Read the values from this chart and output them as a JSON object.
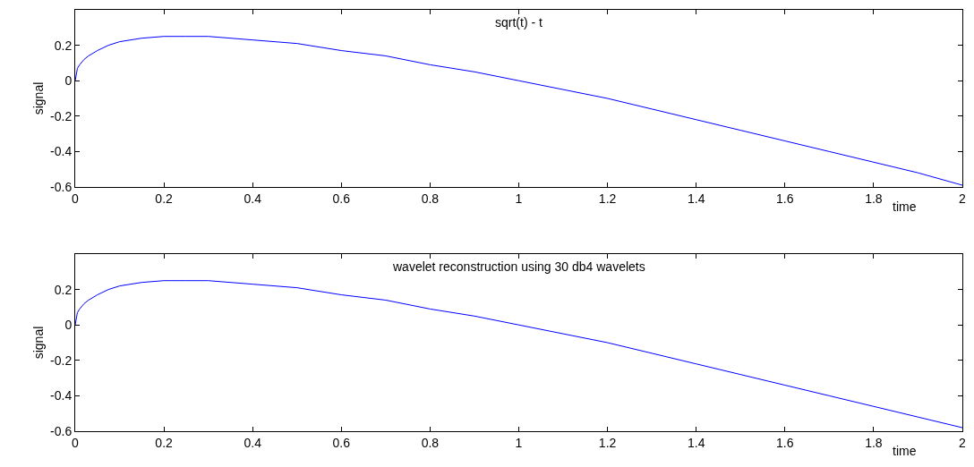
{
  "chart_data": [
    {
      "type": "line",
      "title": "sqrt(t) - t",
      "xlabel": "time",
      "ylabel": "signal",
      "xlim": [
        0,
        2
      ],
      "ylim": [
        -0.6,
        0.4
      ],
      "xticks": [
        0,
        0.2,
        0.4,
        0.6,
        0.8,
        1,
        1.2,
        1.4,
        1.6,
        1.8,
        2
      ],
      "yticks": [
        -0.6,
        -0.4,
        -0.2,
        0,
        0.2
      ],
      "x": [
        0,
        0.005,
        0.01,
        0.02,
        0.03,
        0.05,
        0.075,
        0.1,
        0.15,
        0.2,
        0.25,
        0.3,
        0.4,
        0.5,
        0.6,
        0.7,
        0.8,
        0.9,
        1.0,
        1.1,
        1.2,
        1.3,
        1.4,
        1.5,
        1.6,
        1.7,
        1.8,
        1.9,
        2.0
      ],
      "series": [
        {
          "color": "#0000ff",
          "values": [
            0,
            0.07,
            0.09,
            0.12,
            0.14,
            0.17,
            0.2,
            0.22,
            0.24,
            0.25,
            0.25,
            0.25,
            0.23,
            0.21,
            0.17,
            0.14,
            0.09,
            0.05,
            0,
            -0.05,
            -0.1,
            -0.16,
            -0.22,
            -0.28,
            -0.34,
            -0.4,
            -0.46,
            -0.52,
            -0.59
          ]
        }
      ]
    },
    {
      "type": "line",
      "title": "wavelet reconstruction using 30 db4 wavelets",
      "xlabel": "time",
      "ylabel": "signal",
      "xlim": [
        0,
        2
      ],
      "ylim": [
        -0.6,
        0.4
      ],
      "xticks": [
        0,
        0.2,
        0.4,
        0.6,
        0.8,
        1,
        1.2,
        1.4,
        1.6,
        1.8,
        2
      ],
      "yticks": [
        -0.6,
        -0.4,
        -0.2,
        0,
        0.2
      ],
      "x": [
        0,
        0.005,
        0.01,
        0.02,
        0.03,
        0.05,
        0.075,
        0.1,
        0.15,
        0.2,
        0.25,
        0.3,
        0.4,
        0.5,
        0.6,
        0.7,
        0.8,
        0.9,
        1.0,
        1.1,
        1.2,
        1.3,
        1.4,
        1.5,
        1.6,
        1.7,
        1.8,
        1.9,
        2.0
      ],
      "series": [
        {
          "color": "#0000ff",
          "values": [
            0,
            0.07,
            0.09,
            0.12,
            0.14,
            0.17,
            0.2,
            0.22,
            0.24,
            0.25,
            0.25,
            0.25,
            0.23,
            0.21,
            0.17,
            0.14,
            0.09,
            0.05,
            0,
            -0.05,
            -0.1,
            -0.16,
            -0.22,
            -0.28,
            -0.34,
            -0.4,
            -0.46,
            -0.52,
            -0.58
          ]
        }
      ]
    }
  ]
}
